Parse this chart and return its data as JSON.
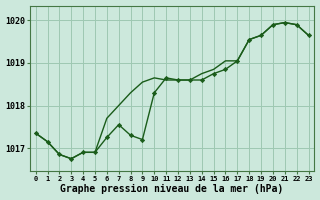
{
  "xlabel": "Graphe pression niveau de la mer (hPa)",
  "background_color": "#cce8dc",
  "grid_color": "#9ec8b2",
  "line_color": "#1a5c1a",
  "x_values": [
    0,
    1,
    2,
    3,
    4,
    5,
    6,
    7,
    8,
    9,
    10,
    11,
    12,
    13,
    14,
    15,
    16,
    17,
    18,
    19,
    20,
    21,
    22,
    23
  ],
  "y_jagged": [
    1017.35,
    1017.15,
    1016.85,
    1016.75,
    1016.9,
    1016.9,
    1017.25,
    1017.55,
    1017.3,
    1017.2,
    1018.3,
    1018.65,
    1018.6,
    1018.6,
    1018.6,
    1018.75,
    1018.85,
    1019.05,
    1019.55,
    1019.65,
    1019.9,
    1019.95,
    1019.9,
    1019.65
  ],
  "y_smooth": [
    1017.35,
    1017.15,
    1016.85,
    1016.75,
    1016.9,
    1016.9,
    1017.7,
    1018.0,
    1018.3,
    1018.55,
    1018.65,
    1018.6,
    1018.6,
    1018.6,
    1018.75,
    1018.85,
    1019.05,
    1019.05,
    1019.55,
    1019.65,
    1019.9,
    1019.95,
    1019.9,
    1019.65
  ],
  "ylim": [
    1016.45,
    1020.35
  ],
  "yticks": [
    1017,
    1018,
    1019,
    1020
  ],
  "xlim": [
    -0.5,
    23.5
  ]
}
